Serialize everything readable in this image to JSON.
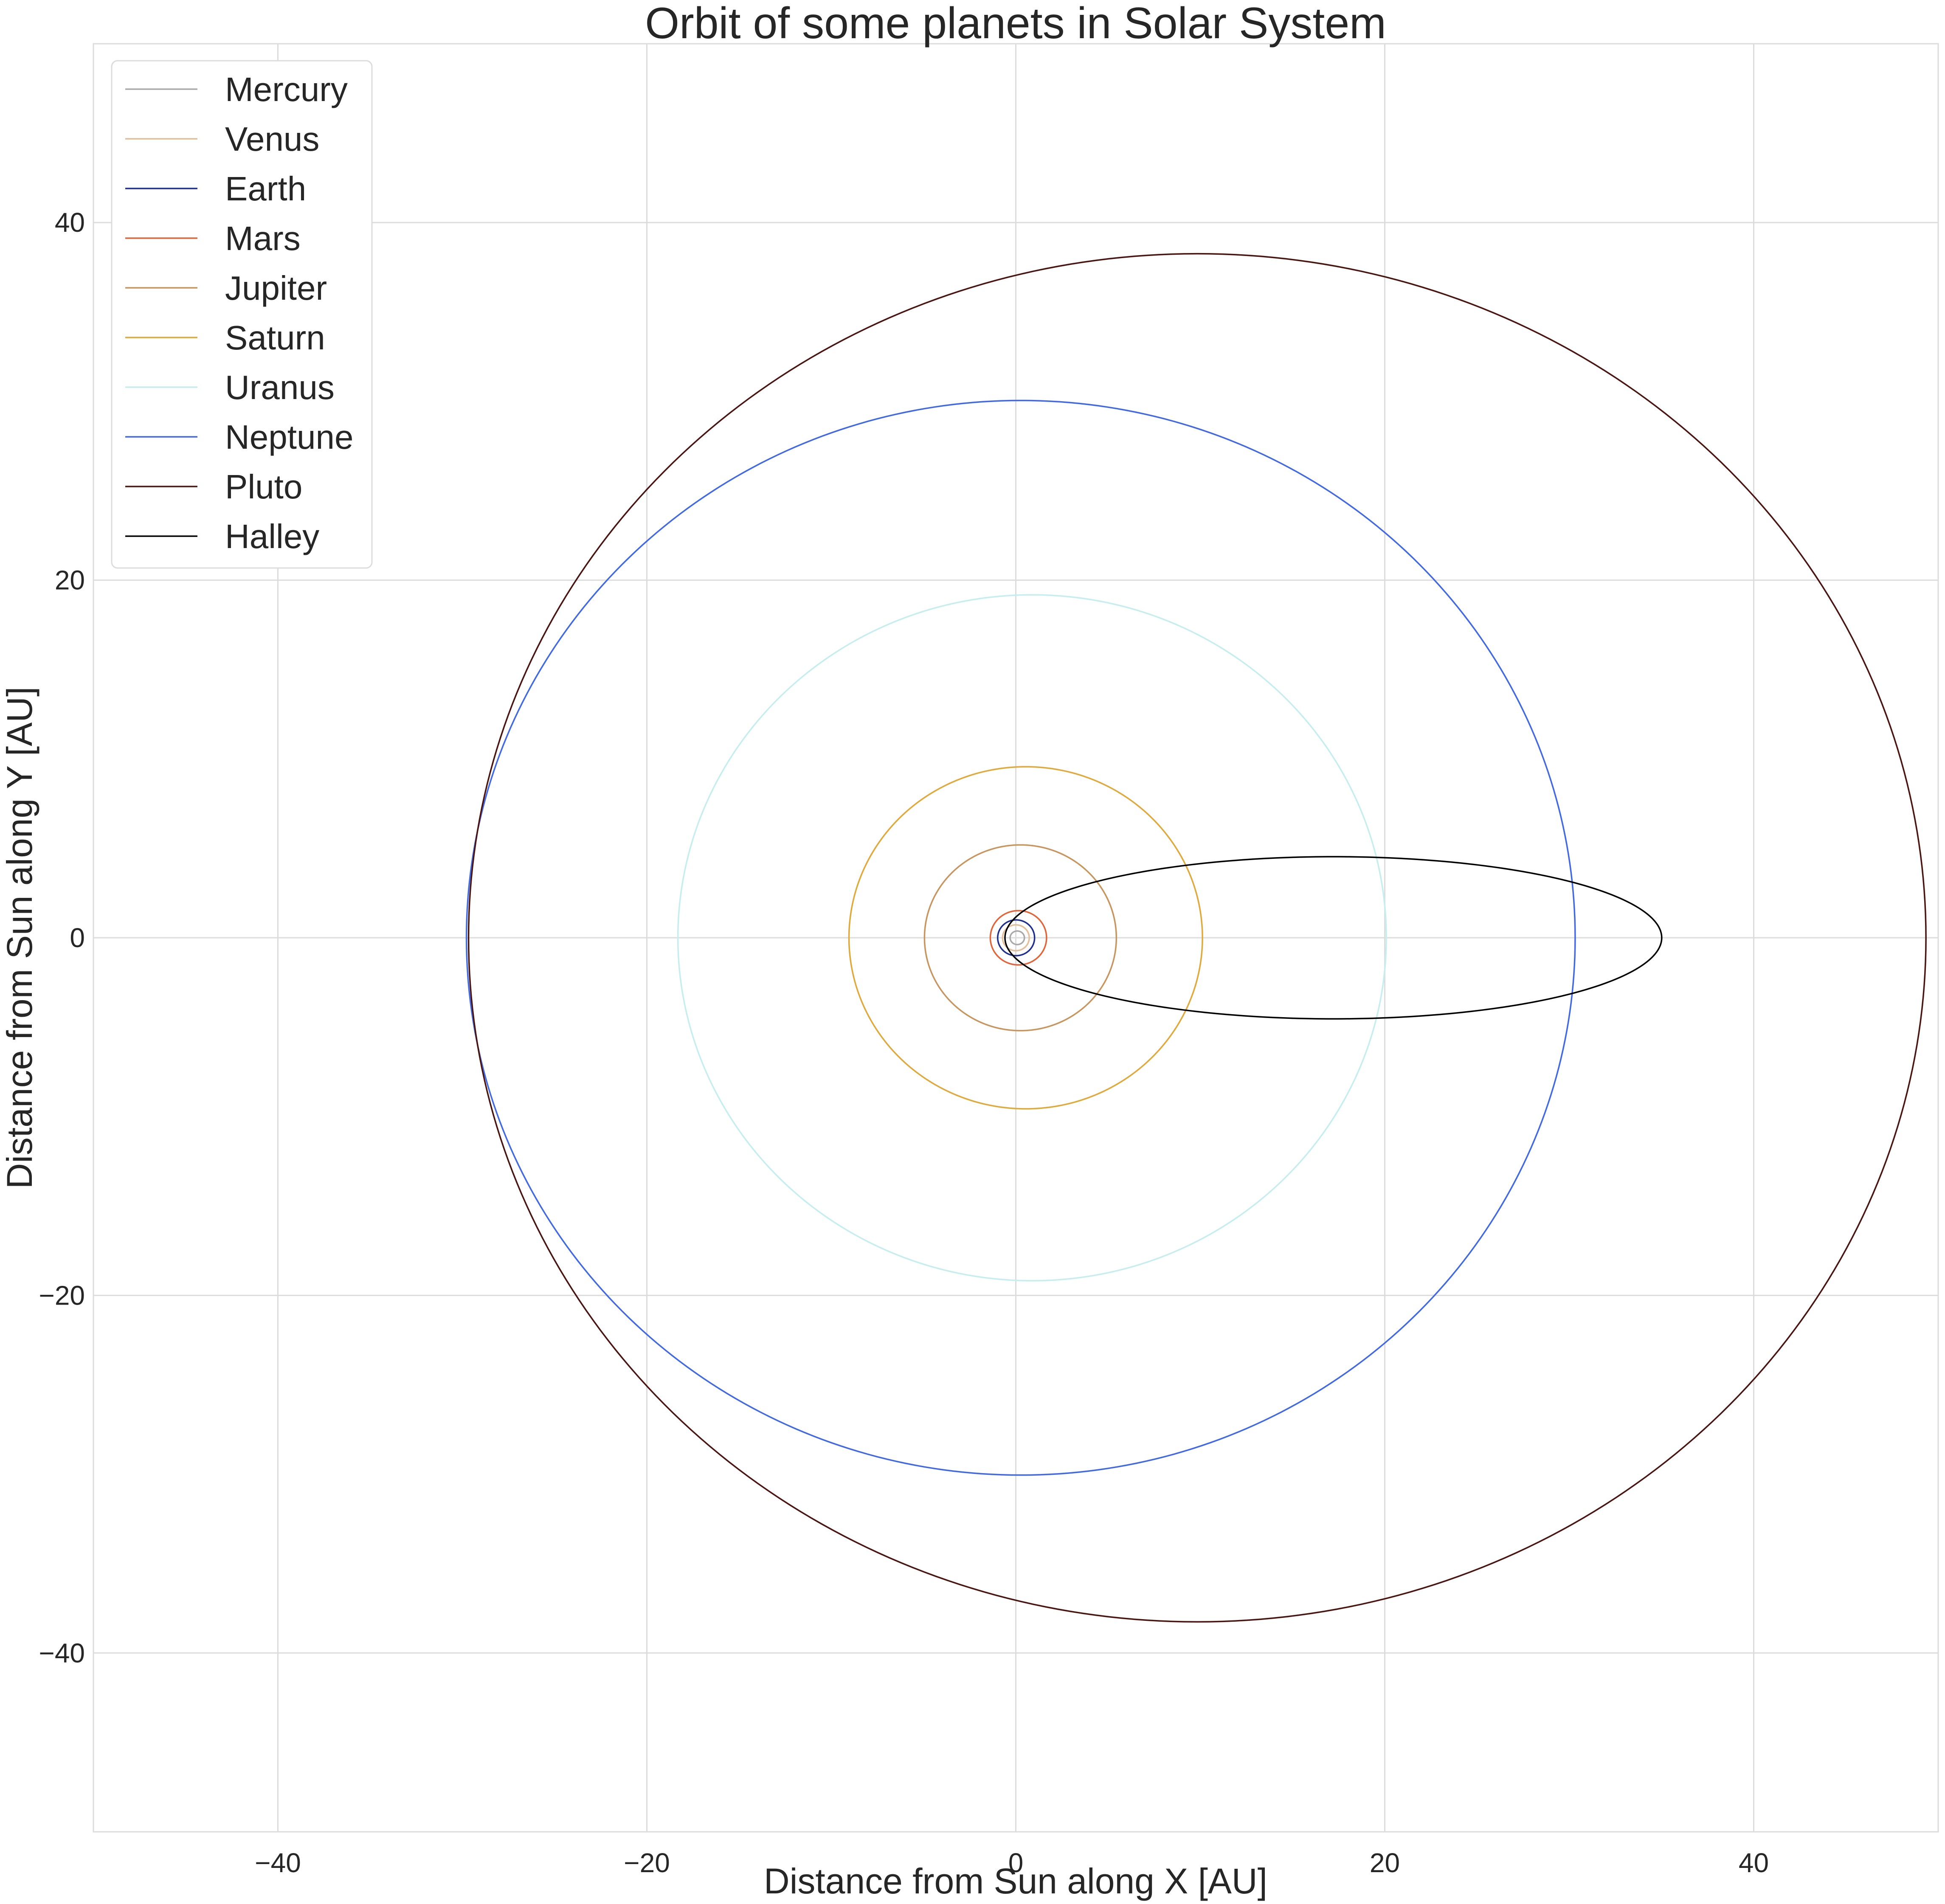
{
  "chart_data": {
    "type": "line",
    "title": "Orbit of some planets in Solar System",
    "xlabel": "Distance from Sun along X [AU]",
    "ylabel": "Distance from Sun along Y [AU]",
    "xlim": [
      -50,
      50
    ],
    "ylim": [
      -50,
      50
    ],
    "xticks": [
      -40,
      -20,
      0,
      20,
      40
    ],
    "yticks": [
      -40,
      -20,
      0,
      20,
      40
    ],
    "tick_labels": [
      "−40",
      "−20",
      "0",
      "20",
      "40"
    ],
    "grid": true,
    "legend_position": "top-left",
    "series": [
      {
        "name": "Mercury",
        "color": "#a9a9a9",
        "semi_major_axis": 0.387,
        "eccentricity": 0.206
      },
      {
        "name": "Venus",
        "color": "#e2be9a",
        "semi_major_axis": 0.723,
        "eccentricity": 0.007
      },
      {
        "name": "Earth",
        "color": "#1f2f8f",
        "semi_major_axis": 1.0,
        "eccentricity": 0.017
      },
      {
        "name": "Mars",
        "color": "#e2653a",
        "semi_major_axis": 1.524,
        "eccentricity": 0.093
      },
      {
        "name": "Jupiter",
        "color": "#c8955e",
        "semi_major_axis": 5.2,
        "eccentricity": 0.048
      },
      {
        "name": "Saturn",
        "color": "#e0a93c",
        "semi_major_axis": 9.58,
        "eccentricity": 0.056
      },
      {
        "name": "Uranus",
        "color": "#c6eeee",
        "semi_major_axis": 19.2,
        "eccentricity": 0.046
      },
      {
        "name": "Neptune",
        "color": "#4169e1",
        "semi_major_axis": 30.05,
        "eccentricity": 0.009
      },
      {
        "name": "Pluto",
        "color": "#4a1410",
        "semi_major_axis": 39.5,
        "eccentricity": 0.249
      },
      {
        "name": "Halley",
        "color": "#000000",
        "semi_major_axis": 17.8,
        "eccentricity": 0.967
      }
    ]
  }
}
